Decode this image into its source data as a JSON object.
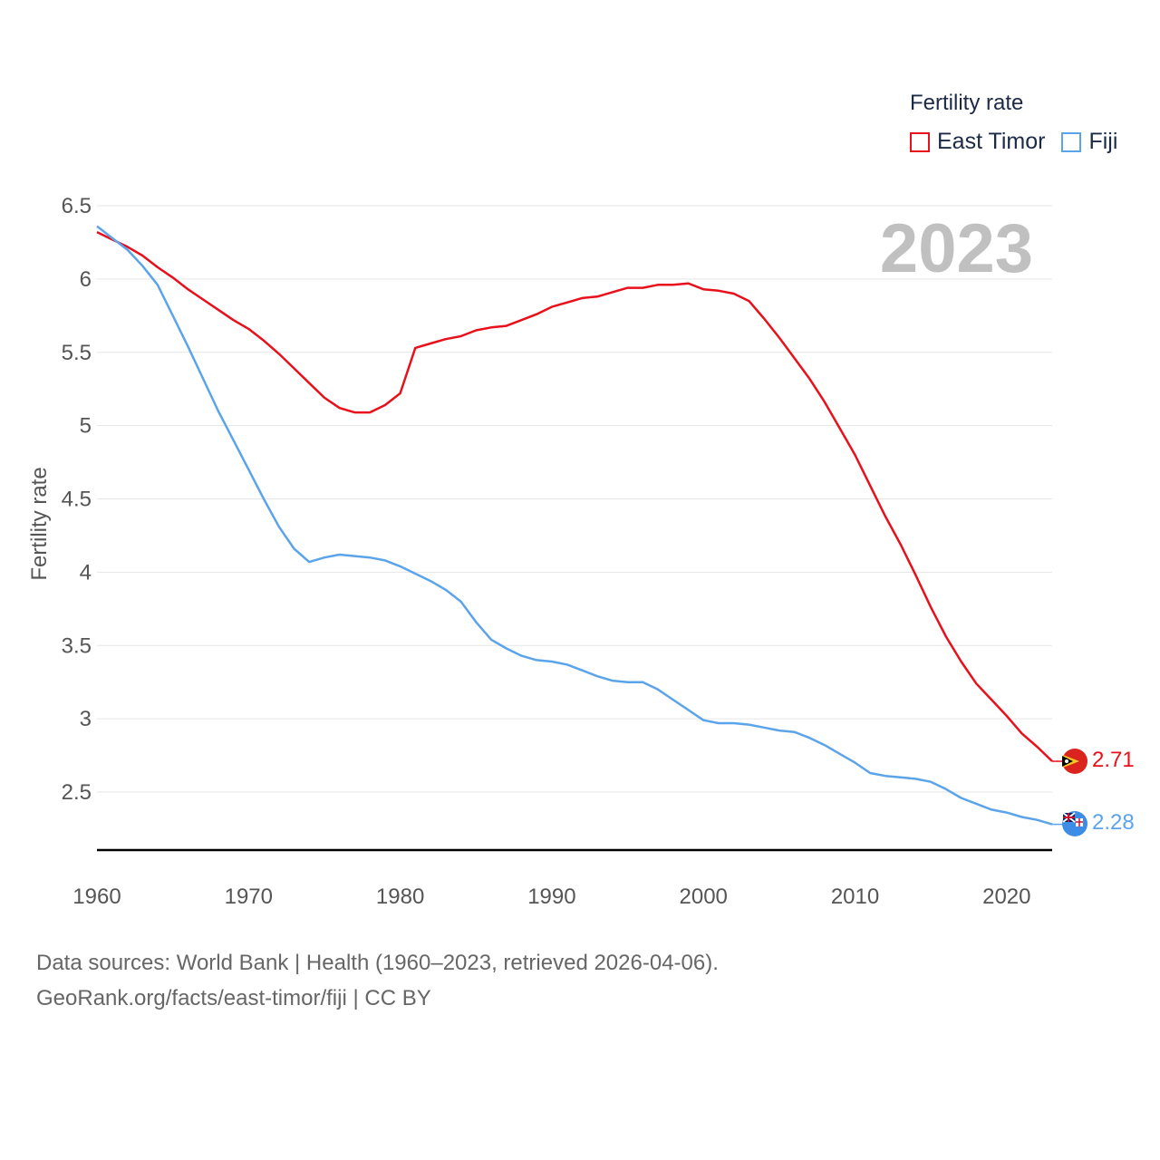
{
  "legend": {
    "title": "Fertility rate",
    "items": [
      {
        "label": "East Timor",
        "color": "#e8101a"
      },
      {
        "label": "Fiji",
        "color": "#5ba4ea"
      }
    ]
  },
  "source": {
    "line1": "Data sources: World Bank | Health (1960–2023, retrieved 2026-04-06).",
    "line2": "GeoRank.org/facts/east-timor/fiji | CC BY"
  },
  "chart_data": {
    "type": "line",
    "title": "Fertility rate",
    "year_label": "2023",
    "xlabel": "",
    "ylabel": "Fertility rate",
    "xlim": [
      1960,
      2023
    ],
    "ylim": [
      2.1,
      6.5
    ],
    "x_ticks": [
      1960,
      1970,
      1980,
      1990,
      2000,
      2010,
      2020
    ],
    "y_ticks": [
      "2.5",
      "3",
      "3.5",
      "4",
      "4.5",
      "5",
      "5.5",
      "6",
      "6.5"
    ],
    "x": [
      1960,
      1961,
      1962,
      1963,
      1964,
      1965,
      1966,
      1967,
      1968,
      1969,
      1970,
      1971,
      1972,
      1973,
      1974,
      1975,
      1976,
      1977,
      1978,
      1979,
      1980,
      1981,
      1982,
      1983,
      1984,
      1985,
      1986,
      1987,
      1988,
      1989,
      1990,
      1991,
      1992,
      1993,
      1994,
      1995,
      1996,
      1997,
      1998,
      1999,
      2000,
      2001,
      2002,
      2003,
      2004,
      2005,
      2006,
      2007,
      2008,
      2009,
      2010,
      2011,
      2012,
      2013,
      2014,
      2015,
      2016,
      2017,
      2018,
      2019,
      2020,
      2021,
      2022,
      2023
    ],
    "series": [
      {
        "name": "East Timor",
        "color": "#e8101a",
        "end_label": "2.71",
        "values": [
          6.32,
          6.27,
          6.22,
          6.16,
          6.08,
          6.01,
          5.93,
          5.86,
          5.79,
          5.72,
          5.66,
          5.58,
          5.49,
          5.39,
          5.29,
          5.19,
          5.12,
          5.09,
          5.09,
          5.14,
          5.22,
          5.53,
          5.56,
          5.59,
          5.61,
          5.65,
          5.67,
          5.68,
          5.72,
          5.76,
          5.81,
          5.84,
          5.87,
          5.88,
          5.91,
          5.94,
          5.94,
          5.96,
          5.96,
          5.97,
          5.93,
          5.92,
          5.9,
          5.85,
          5.73,
          5.6,
          5.46,
          5.32,
          5.16,
          4.98,
          4.8,
          4.59,
          4.38,
          4.19,
          3.98,
          3.76,
          3.56,
          3.39,
          3.24,
          3.13,
          3.02,
          2.9,
          2.81,
          2.71
        ]
      },
      {
        "name": "Fiji",
        "color": "#5ba4ea",
        "end_label": "2.28",
        "values": [
          6.36,
          6.28,
          6.2,
          6.09,
          5.96,
          5.75,
          5.54,
          5.32,
          5.1,
          4.9,
          4.7,
          4.5,
          4.31,
          4.16,
          4.07,
          4.1,
          4.12,
          4.11,
          4.1,
          4.08,
          4.04,
          3.99,
          3.94,
          3.88,
          3.8,
          3.66,
          3.54,
          3.48,
          3.43,
          3.4,
          3.39,
          3.37,
          3.33,
          3.29,
          3.26,
          3.25,
          3.25,
          3.2,
          3.13,
          3.06,
          2.99,
          2.97,
          2.97,
          2.96,
          2.94,
          2.92,
          2.91,
          2.87,
          2.82,
          2.76,
          2.7,
          2.63,
          2.61,
          2.6,
          2.59,
          2.57,
          2.52,
          2.46,
          2.42,
          2.38,
          2.36,
          2.33,
          2.31,
          2.28
        ]
      }
    ]
  }
}
